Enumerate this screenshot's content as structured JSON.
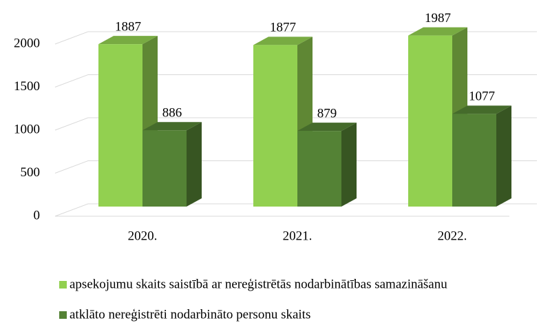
{
  "chart_data": {
    "type": "bar3d",
    "categories": [
      "2020.",
      "2021.",
      "2022."
    ],
    "series": [
      {
        "name": "apsekojumu skaits saistībā ar nereģistrētās nodarbinātības samazināšanu",
        "color": "#92d050",
        "values": [
          1887,
          1877,
          1987
        ]
      },
      {
        "name": "atklāto nereģistrēti nodarbināto personu skaits",
        "color": "#548235",
        "values": [
          886,
          879,
          1077
        ]
      }
    ],
    "ylim": [
      0,
      2000
    ],
    "yticks": [
      0,
      500,
      1000,
      1500,
      2000
    ],
    "grid": true,
    "legend": "bottom"
  }
}
